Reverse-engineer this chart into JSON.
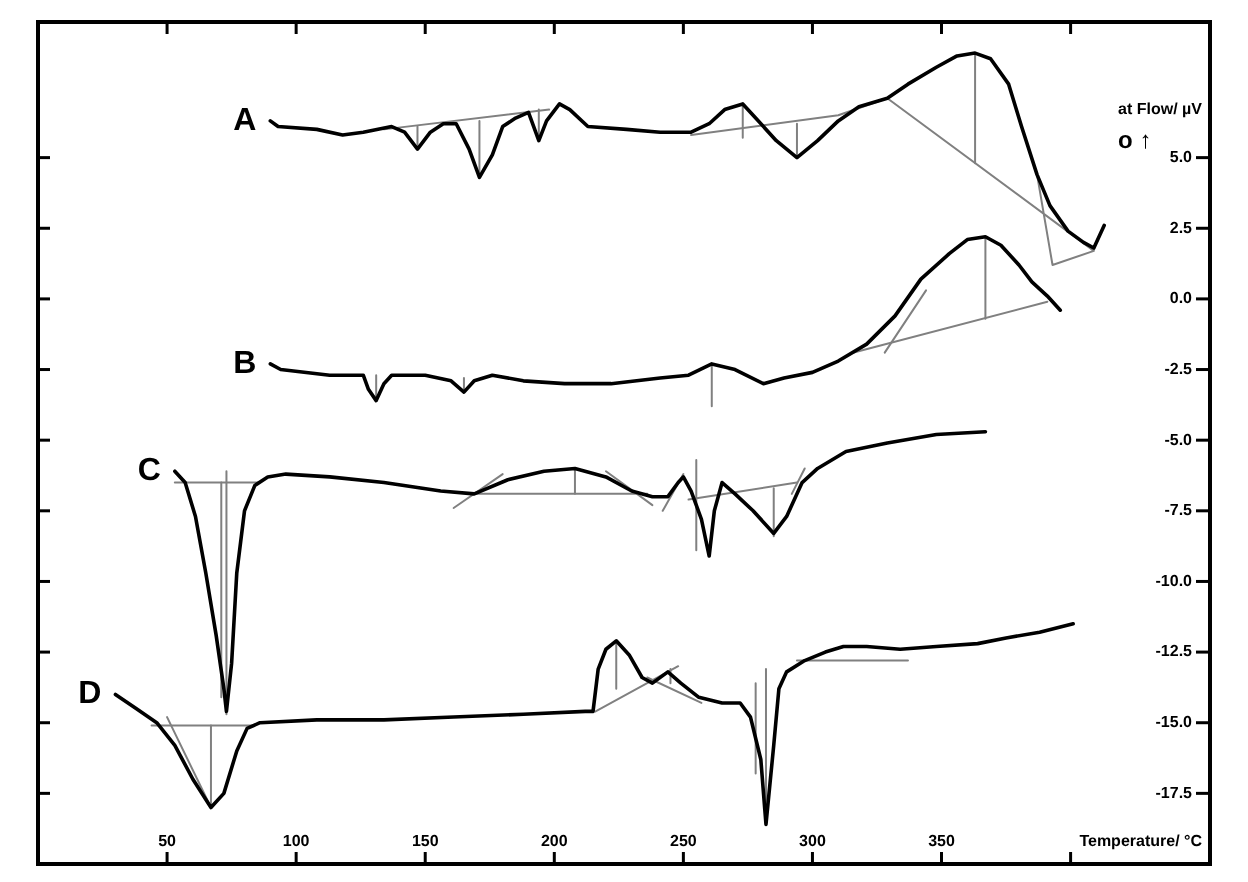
{
  "chart_data": {
    "type": "line",
    "xlabel": "Temperature/ °C",
    "ylabel": "at Flow/ µV",
    "annotations": [
      "o ↑"
    ],
    "marker": "none",
    "xlim": [
      0,
      454
    ],
    "xticks": [
      50,
      100,
      150,
      200,
      250,
      300,
      350,
      {
        "value": 400,
        "label": null
      }
    ],
    "ylim": [
      -20,
      9.8
    ],
    "yticks": [
      {
        "value": 5,
        "label": "5.0"
      },
      {
        "value": 2.5,
        "label": "2.5"
      },
      {
        "value": 0,
        "label": "0.0"
      },
      {
        "value": -2.5,
        "label": "-2.5"
      },
      {
        "value": -5,
        "label": "-5.0"
      },
      {
        "value": -7.5,
        "label": "-7.5"
      },
      {
        "value": -10,
        "label": "-10.0"
      },
      {
        "value": -12.5,
        "label": "-12.5"
      },
      {
        "value": -15,
        "label": "-15.0"
      },
      {
        "value": -17.5,
        "label": "-17.5"
      }
    ],
    "series": [
      {
        "name": "A",
        "color": "#000000",
        "x": [
          90,
          93,
          108,
          118,
          126,
          137,
          142,
          147,
          152,
          157,
          162,
          167,
          171,
          176,
          180,
          185,
          190,
          194,
          197,
          202,
          206,
          213,
          228,
          241,
          253,
          260,
          266,
          273,
          278,
          286,
          294,
          302,
          310,
          318,
          329,
          337,
          348,
          356,
          363,
          369,
          376,
          381,
          387,
          392,
          399,
          405,
          409,
          413
        ],
        "values": [
          6.3,
          6.1,
          6.0,
          5.8,
          5.9,
          6.1,
          5.9,
          5.3,
          5.9,
          6.2,
          6.2,
          5.3,
          4.3,
          5.1,
          6.1,
          6.4,
          6.6,
          5.6,
          6.3,
          6.9,
          6.7,
          6.1,
          6.0,
          5.9,
          5.9,
          6.2,
          6.7,
          6.9,
          6.4,
          5.6,
          5.0,
          5.6,
          6.3,
          6.8,
          7.1,
          7.6,
          8.2,
          8.6,
          8.7,
          8.5,
          7.6,
          6.1,
          4.4,
          3.3,
          2.4,
          2.0,
          1.8,
          2.6
        ]
      },
      {
        "name": "B",
        "color": "#000000",
        "x": [
          90,
          94,
          113,
          126,
          128,
          131,
          134,
          137,
          150,
          160,
          165,
          169,
          176,
          188,
          204,
          222,
          241,
          252,
          261,
          270,
          281,
          289,
          300,
          310,
          321,
          332,
          342,
          353,
          360,
          367,
          373,
          380,
          385,
          391,
          396
        ],
        "values": [
          -2.3,
          -2.5,
          -2.7,
          -2.7,
          -3.2,
          -3.6,
          -3.0,
          -2.7,
          -2.7,
          -2.9,
          -3.3,
          -2.9,
          -2.7,
          -2.9,
          -3.0,
          -3.0,
          -2.8,
          -2.7,
          -2.3,
          -2.5,
          -3.0,
          -2.8,
          -2.6,
          -2.2,
          -1.6,
          -0.6,
          0.7,
          1.6,
          2.1,
          2.2,
          1.9,
          1.2,
          0.6,
          0.1,
          -0.4
        ]
      },
      {
        "name": "C",
        "color": "#000000",
        "x": [
          53,
          57,
          61,
          65,
          69,
          72,
          73,
          75,
          77,
          80,
          84,
          89,
          96,
          113,
          134,
          156,
          169,
          182,
          196,
          208,
          220,
          230,
          238,
          244,
          248,
          250,
          253,
          257,
          260,
          262,
          265,
          270,
          277,
          285,
          290,
          296,
          302,
          313,
          329,
          348,
          367
        ],
        "values": [
          -6.1,
          -6.5,
          -7.7,
          -9.7,
          -11.9,
          -13.8,
          -14.6,
          -12.9,
          -9.7,
          -7.5,
          -6.6,
          -6.3,
          -6.2,
          -6.3,
          -6.5,
          -6.8,
          -6.9,
          -6.4,
          -6.1,
          -6.0,
          -6.3,
          -6.8,
          -7.0,
          -7.0,
          -6.5,
          -6.3,
          -6.8,
          -7.8,
          -9.1,
          -7.5,
          -6.5,
          -6.9,
          -7.5,
          -8.3,
          -7.7,
          -6.5,
          -6.0,
          -5.4,
          -5.1,
          -4.8,
          -4.7
        ]
      },
      {
        "name": "D",
        "color": "#000000",
        "x": [
          30,
          38,
          46,
          53,
          60,
          67,
          72,
          77,
          81,
          86,
          108,
          134,
          161,
          188,
          212,
          215,
          217,
          220,
          224,
          229,
          234,
          238,
          244,
          249,
          256,
          265,
          272,
          276,
          280,
          282,
          285,
          287,
          290,
          297,
          305,
          312,
          321,
          334,
          348,
          364,
          375,
          388,
          401
        ],
        "values": [
          -14.0,
          -14.5,
          -15.0,
          -15.8,
          -17.0,
          -18.0,
          -17.5,
          -16.0,
          -15.2,
          -15.0,
          -14.9,
          -14.9,
          -14.8,
          -14.7,
          -14.6,
          -14.6,
          -13.1,
          -12.4,
          -12.1,
          -12.6,
          -13.4,
          -13.6,
          -13.2,
          -13.6,
          -14.1,
          -14.3,
          -14.3,
          -14.8,
          -16.3,
          -18.6,
          -15.8,
          -13.8,
          -13.2,
          -12.8,
          -12.5,
          -12.3,
          -12.3,
          -12.4,
          -12.3,
          -12.2,
          -12.0,
          -11.8,
          -11.5
        ]
      },
      {
        "color": "#808080",
        "x": [
          134,
          198
        ],
        "values": [
          6.0,
          6.7
        ]
      },
      {
        "color": "#808080",
        "x": [
          147,
          147
        ],
        "values": [
          6.1,
          5.3
        ]
      },
      {
        "color": "#808080",
        "x": [
          171,
          171
        ],
        "values": [
          6.3,
          4.4
        ]
      },
      {
        "color": "#808080",
        "x": [
          194,
          194
        ],
        "values": [
          6.7,
          5.6
        ]
      },
      {
        "color": "#808080",
        "x": [
          253,
          310,
          329,
          409,
          393,
          387
        ],
        "values": [
          5.8,
          6.5,
          7.1,
          1.7,
          1.2,
          4.4
        ]
      },
      {
        "color": "#808080",
        "x": [
          273,
          273
        ],
        "values": [
          6.9,
          5.7
        ]
      },
      {
        "color": "#808080",
        "x": [
          294,
          294
        ],
        "values": [
          6.2,
          5.0
        ]
      },
      {
        "color": "#808080",
        "x": [
          363,
          363
        ],
        "values": [
          8.7,
          4.8
        ]
      },
      {
        "color": "#808080",
        "x": [
          316,
          391
        ],
        "values": [
          -1.9,
          -0.1
        ]
      },
      {
        "color": "#808080",
        "x": [
          367,
          367
        ],
        "values": [
          2.2,
          -0.7
        ]
      },
      {
        "color": "#808080",
        "x": [
          328,
          344
        ],
        "values": [
          -1.9,
          0.3
        ]
      },
      {
        "color": "#808080",
        "x": [
          261,
          261
        ],
        "values": [
          -2.3,
          -3.8
        ]
      },
      {
        "color": "#808080",
        "x": [
          131,
          131
        ],
        "values": [
          -2.7,
          -3.5
        ]
      },
      {
        "color": "#808080",
        "x": [
          165,
          165
        ],
        "values": [
          -2.8,
          -3.2
        ]
      },
      {
        "color": "#808080",
        "x": [
          53,
          86
        ],
        "values": [
          -6.5,
          -6.5
        ]
      },
      {
        "color": "#808080",
        "x": [
          71,
          71
        ],
        "values": [
          -6.5,
          -14.1
        ]
      },
      {
        "color": "#808080",
        "x": [
          73,
          73
        ],
        "values": [
          -6.1,
          -14.7
        ]
      },
      {
        "color": "#808080",
        "x": [
          169,
          236
        ],
        "values": [
          -6.9,
          -6.9
        ]
      },
      {
        "color": "#808080",
        "x": [
          208,
          208
        ],
        "values": [
          -6.0,
          -6.9
        ]
      },
      {
        "color": "#808080",
        "x": [
          161,
          180
        ],
        "values": [
          -7.4,
          -6.2
        ]
      },
      {
        "color": "#808080",
        "x": [
          220,
          238
        ],
        "values": [
          -6.1,
          -7.3
        ]
      },
      {
        "color": "#808080",
        "x": [
          252,
          294
        ],
        "values": [
          -7.1,
          -6.5
        ]
      },
      {
        "color": "#808080",
        "x": [
          255,
          255
        ],
        "values": [
          -5.7,
          -8.9
        ]
      },
      {
        "color": "#808080",
        "x": [
          285,
          285
        ],
        "values": [
          -6.7,
          -8.4
        ]
      },
      {
        "color": "#808080",
        "x": [
          242,
          250
        ],
        "values": [
          -7.5,
          -6.2
        ]
      },
      {
        "color": "#808080",
        "x": [
          292,
          297
        ],
        "values": [
          -6.9,
          -6.0
        ]
      },
      {
        "color": "#808080",
        "x": [
          44,
          84
        ],
        "values": [
          -15.1,
          -15.1
        ]
      },
      {
        "color": "#808080",
        "x": [
          50,
          67,
          67
        ],
        "values": [
          -14.8,
          -18.0,
          -15.1
        ]
      },
      {
        "color": "#808080",
        "x": [
          224,
          224
        ],
        "values": [
          -12.1,
          -13.8
        ]
      },
      {
        "color": "#808080",
        "x": [
          216,
          248
        ],
        "values": [
          -14.6,
          -13.0
        ]
      },
      {
        "color": "#808080",
        "x": [
          236,
          257
        ],
        "values": [
          -13.4,
          -14.3
        ]
      },
      {
        "color": "#808080",
        "x": [
          245,
          245
        ],
        "values": [
          -13.1,
          -13.6
        ]
      },
      {
        "color": "#808080",
        "x": [
          282,
          282
        ],
        "values": [
          -13.1,
          -18.5
        ]
      },
      {
        "color": "#808080",
        "x": [
          278,
          278
        ],
        "values": [
          -13.6,
          -16.8
        ]
      },
      {
        "color": "#808080",
        "x": [
          294,
          337
        ],
        "values": [
          -12.8,
          -12.8
        ]
      }
    ]
  }
}
